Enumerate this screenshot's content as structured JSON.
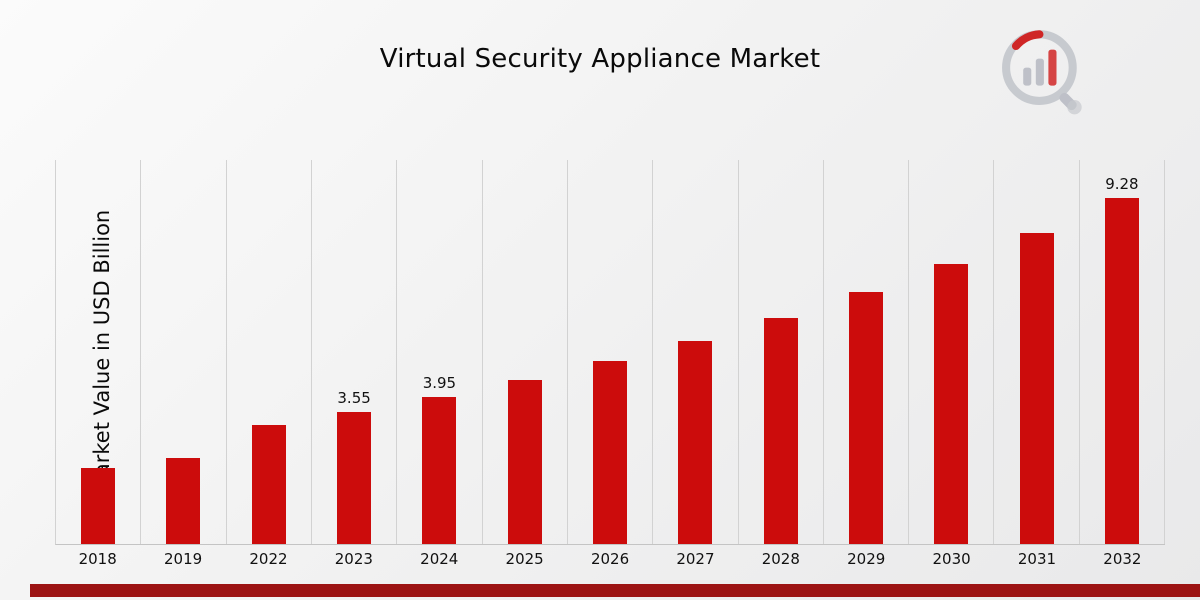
{
  "chart_data": {
    "type": "bar",
    "title": "Virtual Security Appliance Market",
    "xlabel": "",
    "ylabel": "Market Value in USD Billion",
    "categories": [
      "2018",
      "2019",
      "2022",
      "2023",
      "2024",
      "2025",
      "2026",
      "2027",
      "2028",
      "2029",
      "2030",
      "2031",
      "2032"
    ],
    "values": [
      2.05,
      2.3,
      3.2,
      3.55,
      3.95,
      4.4,
      4.9,
      5.45,
      6.05,
      6.75,
      7.5,
      8.35,
      9.28
    ],
    "data_labels": {
      "2023": "3.55",
      "2024": "3.95",
      "2032": "9.28"
    },
    "ylim": [
      0,
      10.3
    ],
    "grid": "vertical-only",
    "legend": "none",
    "bar_color": "#CC0C0C",
    "gridline_color": "#d2d2d2",
    "strip_color": "#9C1313",
    "background_color": "#f2f2f2"
  },
  "logo": {
    "name": "market-research-chart-logo",
    "ring_color": "#c3c6cc",
    "accent_color": "#CC1111"
  }
}
